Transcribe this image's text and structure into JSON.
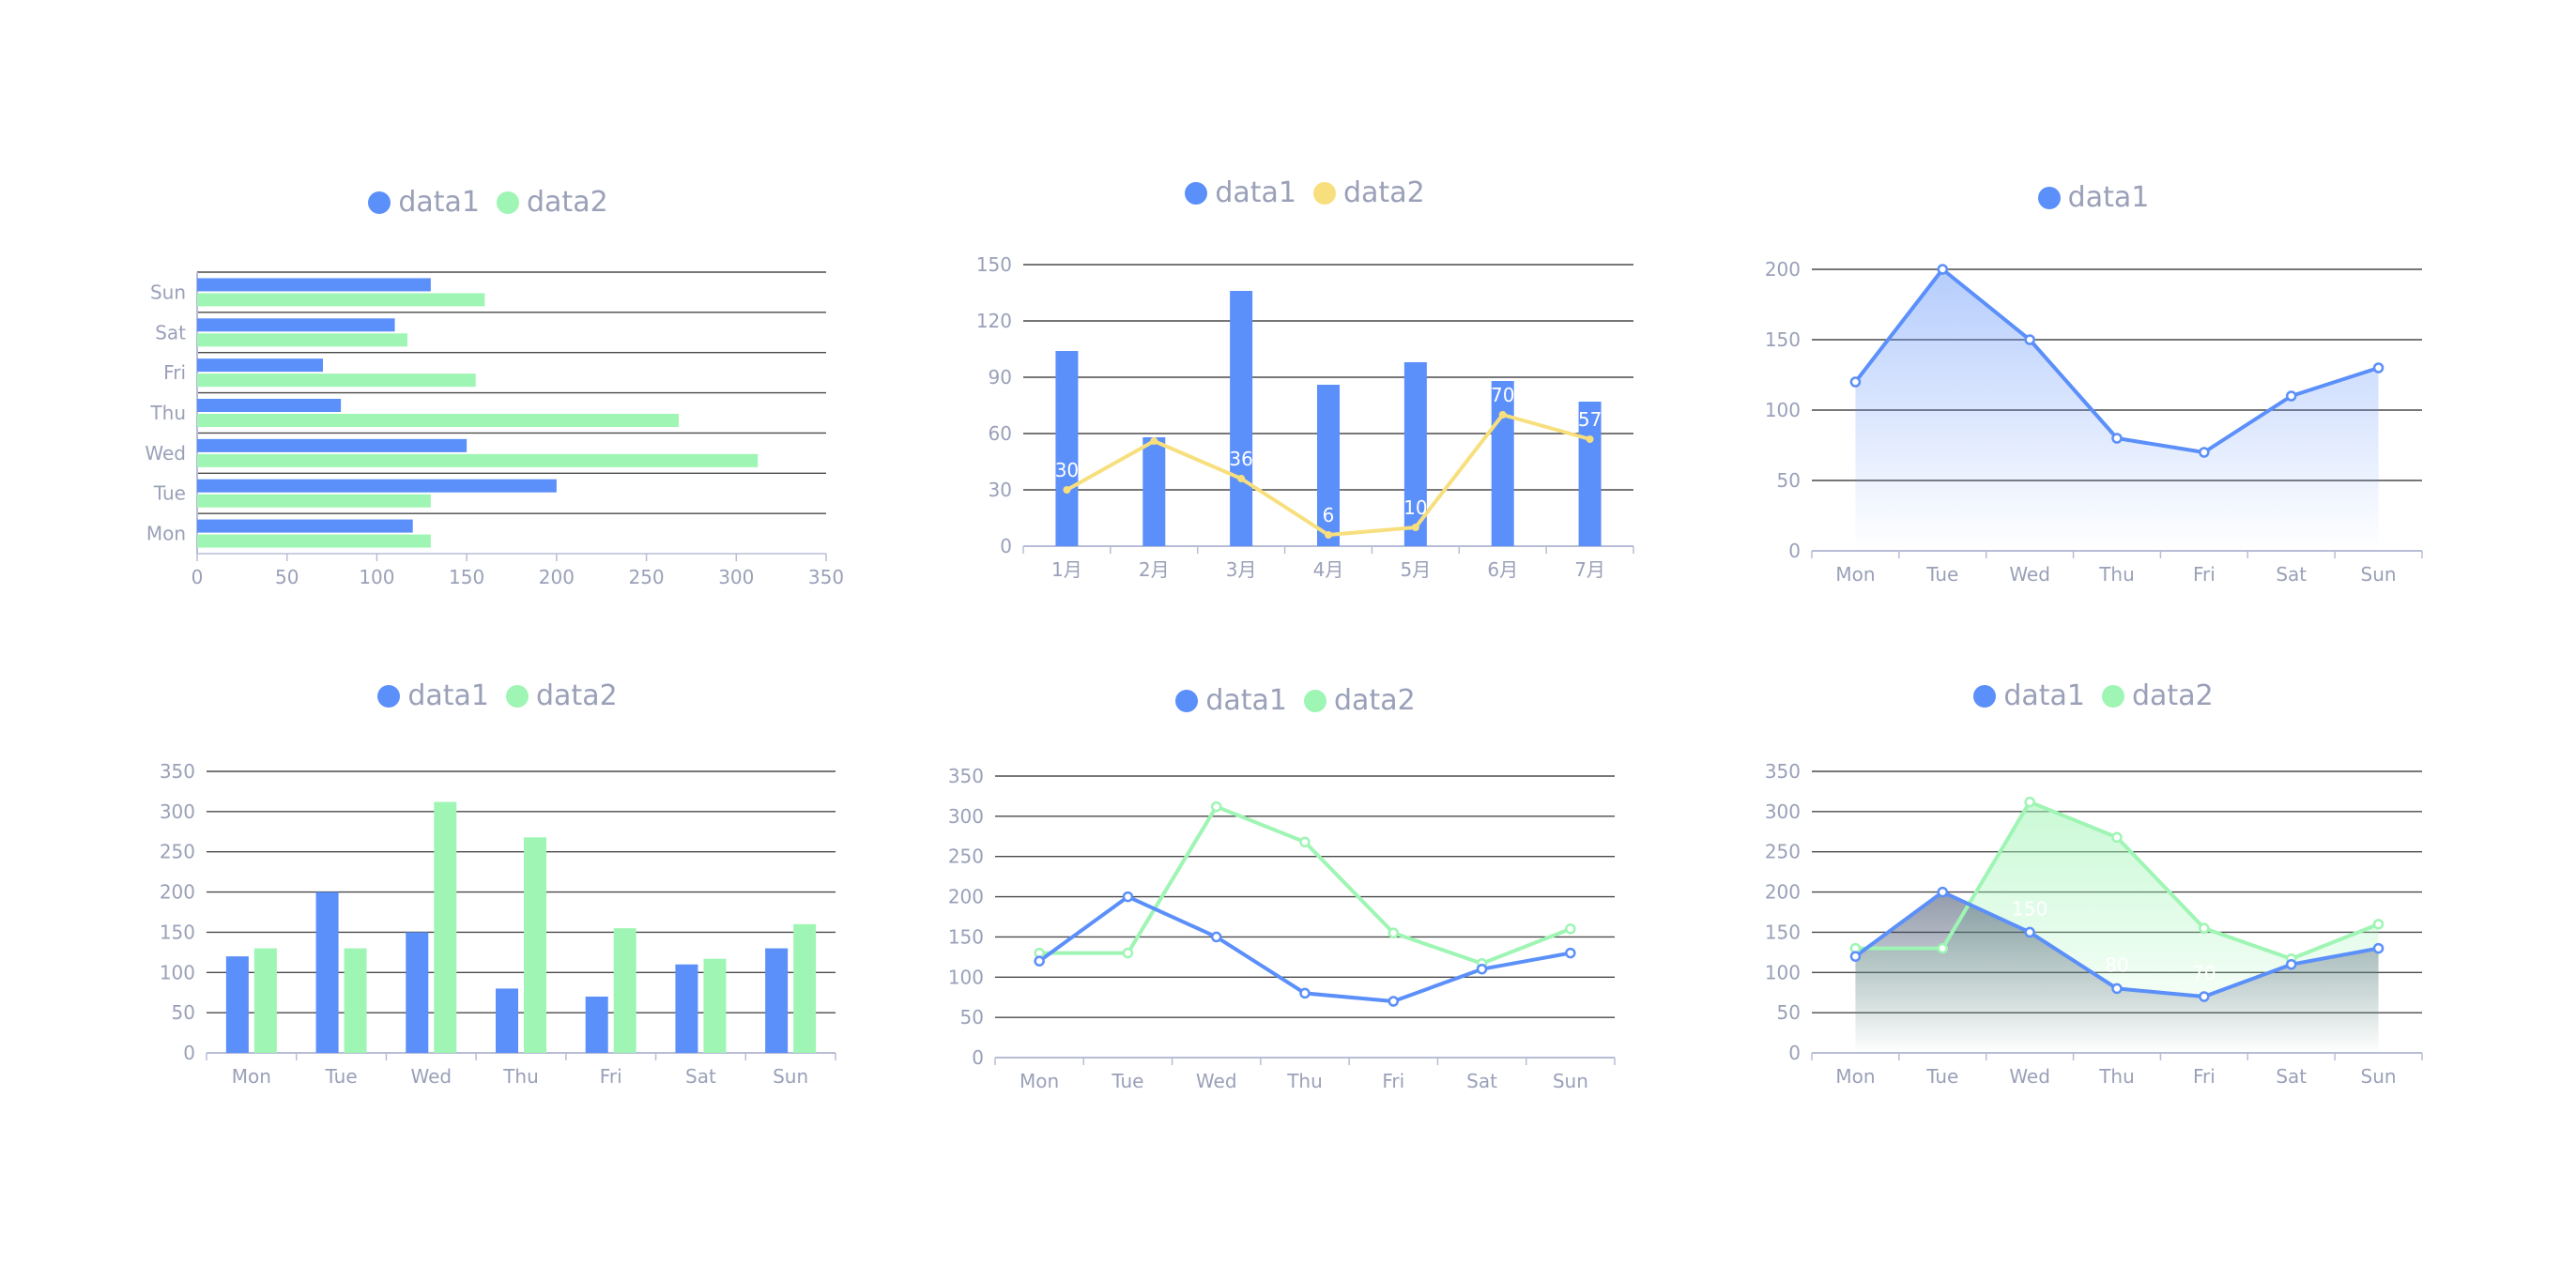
{
  "colors": {
    "blue": "#5b8ff9",
    "green": "#9ef5b4",
    "yellow": "#f8df7d",
    "grid": "#4a4a4a",
    "axis": "#b8bdd6",
    "tick_text": "#9aa0b8"
  },
  "chart_data": [
    {
      "type": "bar",
      "orientation": "horizontal",
      "legend": [
        "data1",
        "data2"
      ],
      "categories": [
        "Mon",
        "Tue",
        "Wed",
        "Thu",
        "Fri",
        "Sat",
        "Sun"
      ],
      "series": [
        {
          "name": "data1",
          "values": [
            120,
            200,
            150,
            80,
            70,
            110,
            130
          ]
        },
        {
          "name": "data2",
          "values": [
            130,
            130,
            312,
            268,
            155,
            117,
            160
          ]
        }
      ],
      "xlim": [
        0,
        350
      ],
      "xticks": [
        "0",
        "50",
        "100",
        "150",
        "200",
        "250",
        "300",
        "350"
      ]
    },
    {
      "type": "bar",
      "legend": [
        "data1",
        "data2"
      ],
      "categories": [
        "1月",
        "2月",
        "3月",
        "4月",
        "5月",
        "6月",
        "7月"
      ],
      "series": [
        {
          "name": "data1",
          "type": "bar",
          "values": [
            104,
            58,
            136,
            86,
            98,
            88,
            77
          ]
        },
        {
          "name": "data2",
          "type": "line",
          "values": [
            30,
            56,
            36,
            6,
            10,
            70,
            57
          ]
        }
      ],
      "data_labels": [
        "30",
        "36",
        "6",
        "10",
        "70",
        "57"
      ],
      "ylim": [
        0,
        150
      ],
      "yticks": [
        "0",
        "30",
        "60",
        "90",
        "120",
        "150"
      ]
    },
    {
      "type": "area",
      "legend": [
        "data1"
      ],
      "categories": [
        "Mon",
        "Tue",
        "Wed",
        "Thu",
        "Fri",
        "Sat",
        "Sun"
      ],
      "series": [
        {
          "name": "data1",
          "values": [
            120,
            200,
            150,
            80,
            70,
            110,
            130
          ]
        }
      ],
      "ylim": [
        0,
        200
      ],
      "yticks": [
        "0",
        "50",
        "100",
        "150",
        "200"
      ]
    },
    {
      "type": "bar",
      "legend": [
        "data1",
        "data2"
      ],
      "categories": [
        "Mon",
        "Tue",
        "Wed",
        "Thu",
        "Fri",
        "Sat",
        "Sun"
      ],
      "series": [
        {
          "name": "data1",
          "values": [
            120,
            200,
            150,
            80,
            70,
            110,
            130
          ]
        },
        {
          "name": "data2",
          "values": [
            130,
            130,
            312,
            268,
            155,
            117,
            160
          ]
        }
      ],
      "ylim": [
        0,
        350
      ],
      "yticks": [
        "0",
        "50",
        "100",
        "150",
        "200",
        "250",
        "300",
        "350"
      ]
    },
    {
      "type": "line",
      "legend": [
        "data1",
        "data2"
      ],
      "categories": [
        "Mon",
        "Tue",
        "Wed",
        "Thu",
        "Fri",
        "Sat",
        "Sun"
      ],
      "series": [
        {
          "name": "data1",
          "values": [
            120,
            200,
            150,
            80,
            70,
            110,
            130
          ]
        },
        {
          "name": "data2",
          "values": [
            130,
            130,
            312,
            268,
            155,
            117,
            160
          ]
        }
      ],
      "ylim": [
        0,
        350
      ],
      "yticks": [
        "0",
        "50",
        "100",
        "150",
        "200",
        "250",
        "300",
        "350"
      ]
    },
    {
      "type": "area",
      "legend": [
        "data1",
        "data2"
      ],
      "categories": [
        "Mon",
        "Tue",
        "Wed",
        "Thu",
        "Fri",
        "Sat",
        "Sun"
      ],
      "series": [
        {
          "name": "data1",
          "values": [
            120,
            200,
            150,
            80,
            70,
            110,
            130
          ]
        },
        {
          "name": "data2",
          "values": [
            130,
            130,
            312,
            268,
            155,
            117,
            160
          ]
        }
      ],
      "data_labels": [
        "130",
        "150",
        "80",
        "70"
      ],
      "ylim": [
        0,
        350
      ],
      "yticks": [
        "0",
        "50",
        "100",
        "150",
        "200",
        "250",
        "300",
        "350"
      ]
    }
  ]
}
